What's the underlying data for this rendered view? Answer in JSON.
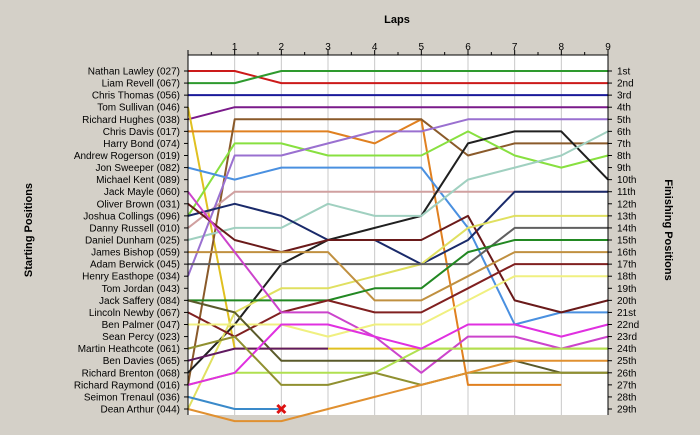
{
  "chart_data": {
    "type": "line",
    "title": "",
    "xlabel": "Laps",
    "ylabel_left": "Starting Positions",
    "ylabel_right": "Finishing Positions",
    "x": [
      0,
      1,
      2,
      3,
      4,
      5,
      6,
      7,
      8,
      9
    ],
    "xticks": [
      "1",
      "2",
      "3",
      "4",
      "5",
      "6",
      "7",
      "8",
      "9"
    ],
    "start_labels": [
      "Nathan Lawley (027)",
      "Liam Revell (067)",
      "Chris Thomas (056)",
      "Tom Sullivan (046)",
      "Richard Hughes (038)",
      "Chris Davis (017)",
      "Harry Bond (074)",
      "Andrew Rogerson (019)",
      "Jon Sweeper (082)",
      "Michael Kent (089)",
      "Jack Mayle (060)",
      "Oliver Brown (031)",
      "Joshua Collings (096)",
      "Danny Russell (010)",
      "Daniel Dunham (025)",
      "James Bishop (059)",
      "Adam Berwick (045)",
      "Henry Easthope (034)",
      "Tom Jordan (043)",
      "Jack Saffery (084)",
      "Lincoln Newby (067)",
      "Ben Palmer (047)",
      "Sean Percy (023)",
      "Martin Heathcote (061)",
      "Ben Davies (065)",
      "Richard Brenton (068)",
      "Richard Raymond (016)",
      "Seimon Trenaul (036)",
      "Dean Arthur (044)"
    ],
    "finish_labels": [
      "1st",
      "2nd",
      "3rd",
      "4th",
      "5th",
      "6th",
      "7th",
      "8th",
      "9th",
      "10th",
      "11th",
      "12th",
      "13th",
      "14th",
      "15th",
      "16th",
      "17th",
      "18th",
      "19th",
      "20th",
      "21st",
      "22nd",
      "23rd",
      "24th",
      "25th",
      "26th",
      "27th",
      "28th",
      "29th"
    ],
    "series": [
      {
        "color": "#cc1a1a",
        "values": [
          1,
          1,
          2,
          2,
          2,
          2,
          2,
          2,
          2,
          2
        ]
      },
      {
        "color": "#2e9a2e",
        "values": [
          2,
          2,
          1,
          1,
          1,
          1,
          1,
          1,
          1,
          1
        ]
      },
      {
        "color": "#1a1a9a",
        "values": [
          3,
          3,
          3,
          3,
          3,
          3,
          3,
          3,
          3,
          3
        ]
      },
      {
        "color": "#7a1a8a",
        "values": [
          5,
          4,
          4,
          4,
          4,
          4,
          4,
          4,
          4,
          4
        ]
      },
      {
        "color": "#e0c020",
        "values": [
          4,
          24,
          24,
          24,
          24,
          24,
          24,
          24,
          24,
          24
        ]
      },
      {
        "color": "#e08020",
        "values": [
          6,
          6,
          6,
          6,
          7,
          5,
          27,
          27,
          27,
          null
        ]
      },
      {
        "color": "#8a5a2a",
        "values": [
          27,
          5,
          5,
          5,
          5,
          5,
          8,
          7,
          7,
          7
        ]
      },
      {
        "color": "#88e040",
        "values": [
          13,
          7,
          7,
          8,
          8,
          8,
          6,
          8,
          9,
          8
        ]
      },
      {
        "color": "#4a90e0",
        "values": [
          9,
          10,
          9,
          9,
          9,
          9,
          14,
          22,
          21,
          21
        ]
      },
      {
        "color": "#d0a0a0",
        "values": [
          14,
          11,
          11,
          11,
          11,
          11,
          11,
          11,
          11,
          11
        ]
      },
      {
        "color": "#202020",
        "values": [
          26,
          22,
          17,
          15,
          14,
          13,
          7,
          6,
          6,
          10
        ]
      },
      {
        "color": "#a0d0c0",
        "values": [
          15,
          14,
          14,
          12,
          13,
          13,
          10,
          9,
          8,
          6
        ]
      },
      {
        "color": "#9a70d0",
        "values": [
          18,
          8,
          8,
          7,
          6,
          6,
          5,
          5,
          5,
          5
        ]
      },
      {
        "color": "#1a2a6a",
        "values": [
          13,
          12,
          13,
          15,
          15,
          17,
          15,
          11,
          11,
          11
        ]
      },
      {
        "color": "#6a1a1a",
        "values": [
          12,
          15,
          16,
          15,
          15,
          15,
          13,
          20,
          21,
          20
        ]
      },
      {
        "color": "#e0e060",
        "values": [
          29,
          21,
          19,
          19,
          18,
          17,
          14,
          13,
          13,
          13
        ]
      },
      {
        "color": "#606060",
        "values": [
          17,
          17,
          17,
          17,
          17,
          17,
          17,
          14,
          14,
          14
        ]
      },
      {
        "color": "#c09040",
        "values": [
          16,
          16,
          16,
          16,
          20,
          20,
          18,
          16,
          16,
          16
        ]
      },
      {
        "color": "#228822",
        "values": [
          20,
          20,
          20,
          20,
          19,
          19,
          16,
          15,
          15,
          15
        ]
      },
      {
        "color": "#802020",
        "values": [
          21,
          23,
          21,
          20,
          21,
          21,
          19,
          17,
          17,
          17
        ]
      },
      {
        "color": "#cc44cc",
        "values": [
          11,
          16,
          21,
          21,
          23,
          26,
          23,
          23,
          24,
          23
        ]
      },
      {
        "color": "#f0f080",
        "values": [
          22,
          22,
          22,
          23,
          22,
          22,
          20,
          18,
          18,
          18
        ]
      },
      {
        "color": "#5a5a2a",
        "values": [
          20,
          21,
          25,
          25,
          25,
          25,
          25,
          25,
          26,
          26
        ]
      },
      {
        "color": "#601a60",
        "values": [
          25,
          24,
          24,
          24,
          null,
          null,
          null,
          null,
          null,
          null
        ]
      },
      {
        "color": "#b0e050",
        "values": [
          27,
          26,
          26,
          26,
          26,
          24,
          24,
          24,
          24,
          24
        ]
      },
      {
        "color": "#e030e0",
        "values": [
          27,
          26,
          22,
          22,
          23,
          24,
          22,
          22,
          23,
          22
        ]
      },
      {
        "color": "#3a8aca",
        "values": [
          28,
          29,
          29,
          null,
          null,
          null,
          null,
          null,
          null,
          null
        ]
      },
      {
        "color": "#909030",
        "values": [
          24,
          23,
          27,
          27,
          26,
          27,
          26,
          26,
          26,
          26
        ]
      },
      {
        "color": "#e09030",
        "values": [
          29,
          30,
          30,
          29,
          28,
          27,
          26,
          25,
          25,
          25
        ]
      }
    ],
    "markers": [
      {
        "x": 2,
        "y": 29,
        "symbol": "cross",
        "color": "#dd1111"
      }
    ],
    "xlim": [
      0,
      9
    ],
    "ylim": [
      1,
      29
    ]
  }
}
